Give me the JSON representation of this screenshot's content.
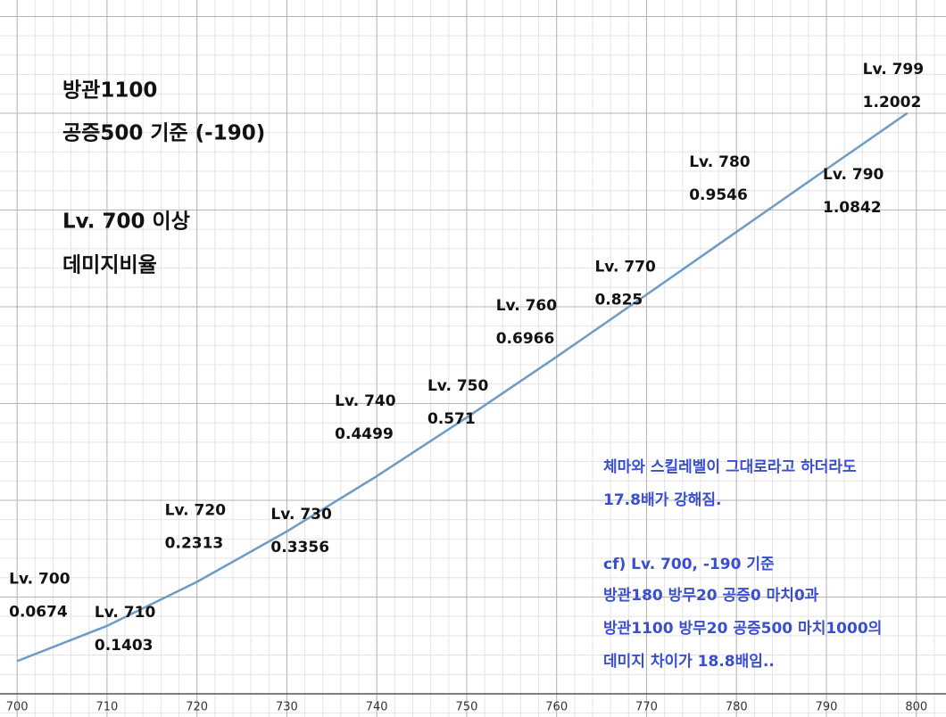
{
  "chart_data": {
    "type": "line",
    "annotations": [
      "방관1100",
      "공증500 기준  (-190)",
      "Lv. 700 이상",
      "데미지비율"
    ],
    "notes": [
      "체마와 스킬레벨이 그대로라고 하더라도",
      "17.8배가 강해짐.",
      "cf) Lv. 700, -190 기준",
      "방관180 방무20 공증0 마치0과",
      "방관1100 방무20 공증500 마치1000의",
      "데미지 차이가 18.8배임.."
    ],
    "x": [
      700,
      710,
      720,
      730,
      740,
      750,
      760,
      770,
      780,
      790,
      799
    ],
    "point_labels": [
      "Lv. 700",
      "Lv. 710",
      "Lv. 720",
      "Lv. 730",
      "Lv. 740",
      "Lv. 750",
      "Lv. 760",
      "Lv. 770",
      "Lv. 780",
      "Lv. 790",
      "Lv. 799"
    ],
    "series": [
      {
        "color": "#6c9bc6",
        "values": [
          0.0674,
          0.1403,
          0.2313,
          0.3356,
          0.4499,
          0.571,
          0.6966,
          0.825,
          0.9546,
          1.0842,
          1.2002
        ]
      }
    ],
    "xlim": [
      698.1,
      803.3
    ],
    "ylim": [
      -0.048,
      1.434
    ],
    "xticks": [
      700,
      710,
      720,
      730,
      740,
      750,
      760,
      770,
      780,
      790,
      800
    ],
    "grid": true
  }
}
